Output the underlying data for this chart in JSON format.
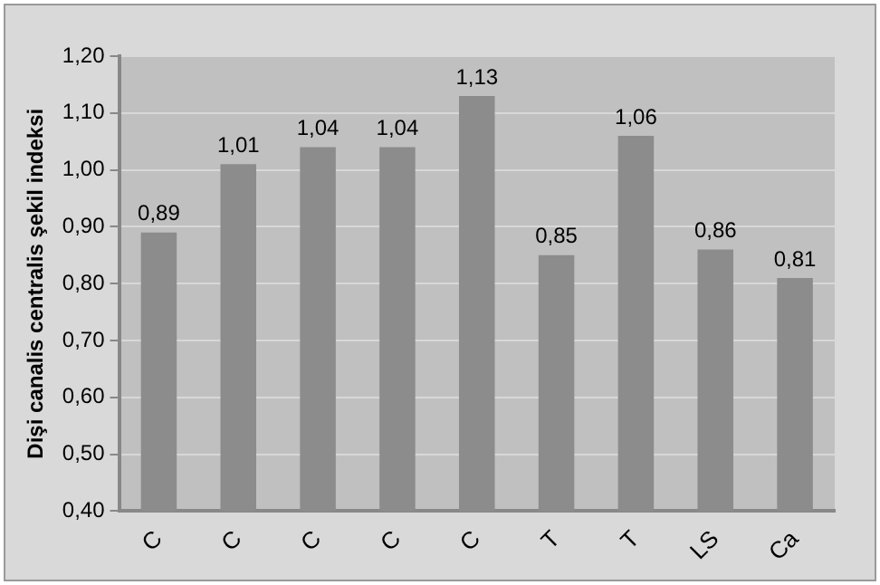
{
  "chart_data": {
    "type": "bar",
    "ylabel": "Dişi canalis centralis şekil indeksi",
    "categories": [
      "C",
      "C",
      "C",
      "C",
      "C",
      "T",
      "T",
      "LS",
      "Ca"
    ],
    "values": [
      0.89,
      1.01,
      1.04,
      1.04,
      1.13,
      0.85,
      1.06,
      0.86,
      0.81
    ],
    "value_labels": [
      "0,89",
      "1,01",
      "1,04",
      "1,04",
      "1,13",
      "0,85",
      "1,06",
      "0,86",
      "0,81"
    ],
    "color": "#8c8c8c",
    "ylim": [
      0.4,
      1.2
    ],
    "yticks": [
      {
        "value": 0.4,
        "label": "0,40"
      },
      {
        "value": 0.5,
        "label": "0,50"
      },
      {
        "value": 0.6,
        "label": "0,60"
      },
      {
        "value": 0.7,
        "label": "0,70"
      },
      {
        "value": 0.8,
        "label": "0,80"
      },
      {
        "value": 0.9,
        "label": "0,90"
      },
      {
        "value": 1.0,
        "label": "1,00"
      },
      {
        "value": 1.1,
        "label": "1,10"
      },
      {
        "value": 1.2,
        "label": "1,20"
      }
    ],
    "grid": "y",
    "legend": false
  }
}
